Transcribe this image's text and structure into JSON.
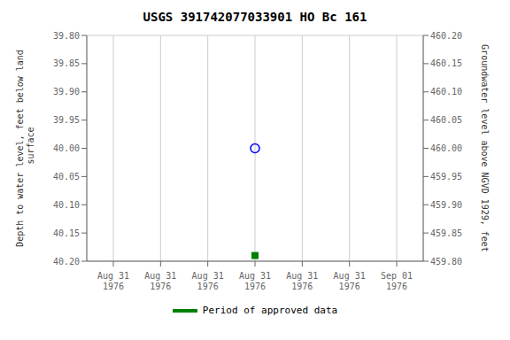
{
  "chart_data": {
    "type": "scatter",
    "title": "USGS 391742077033901 HO Bc 161",
    "ylabel": "Depth to water level, feet below land\n surface",
    "y2label": "Groundwater level above NGVD 1929, feet",
    "categories": [
      "Aug 31\n1976",
      "Aug 31\n1976",
      "Aug 31\n1976",
      "Aug 31\n1976",
      "Aug 31\n1976",
      "Aug 31\n1976",
      "Sep 01\n1976"
    ],
    "series": [
      {
        "color": "blue",
        "marker": "circle",
        "values": [
          null,
          null,
          null,
          40.0,
          null,
          null,
          null
        ]
      },
      {
        "name": "Period of approved data",
        "color": "green",
        "marker": "square",
        "values": [
          null,
          null,
          null,
          40.19,
          null,
          null,
          null
        ]
      }
    ],
    "ylim": [
      40.2,
      39.8
    ],
    "yticks": [
      {
        "value": 39.8,
        "label": "39.80"
      },
      {
        "value": 39.85,
        "label": "39.85"
      },
      {
        "value": 39.9,
        "label": "39.90"
      },
      {
        "value": 39.95,
        "label": "39.95"
      },
      {
        "value": 40.0,
        "label": "40.00"
      },
      {
        "value": 40.05,
        "label": "40.05"
      },
      {
        "value": 40.1,
        "label": "40.10"
      },
      {
        "value": 40.15,
        "label": "40.15"
      },
      {
        "value": 40.2,
        "label": "40.20"
      }
    ],
    "y2lim": [
      459.8,
      460.2
    ],
    "y2ticks": [
      {
        "value": 460.2,
        "label": "460.20"
      },
      {
        "value": 460.15,
        "label": "460.15"
      },
      {
        "value": 460.1,
        "label": "460.10"
      },
      {
        "value": 460.05,
        "label": "460.05"
      },
      {
        "value": 460.0,
        "label": "460.00"
      },
      {
        "value": 459.95,
        "label": "459.95"
      },
      {
        "value": 459.9,
        "label": "459.90"
      },
      {
        "value": 459.85,
        "label": "459.85"
      },
      {
        "value": 459.8,
        "label": "459.80"
      }
    ],
    "grid": true,
    "legend": "bottom"
  }
}
